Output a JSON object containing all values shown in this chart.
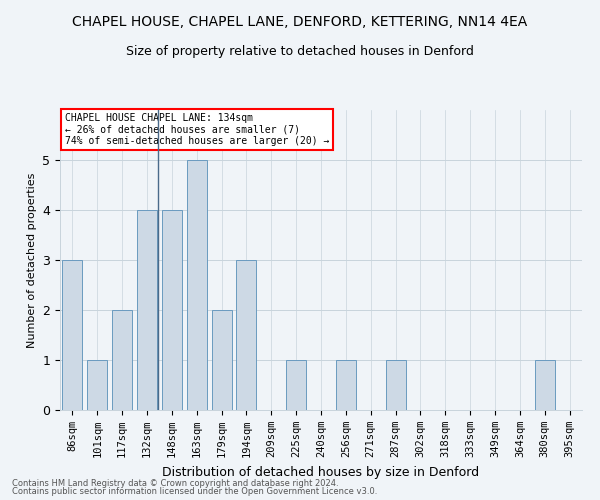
{
  "title": "CHAPEL HOUSE, CHAPEL LANE, DENFORD, KETTERING, NN14 4EA",
  "subtitle": "Size of property relative to detached houses in Denford",
  "xlabel": "Distribution of detached houses by size in Denford",
  "ylabel": "Number of detached properties",
  "categories": [
    "86sqm",
    "101sqm",
    "117sqm",
    "132sqm",
    "148sqm",
    "163sqm",
    "179sqm",
    "194sqm",
    "209sqm",
    "225sqm",
    "240sqm",
    "256sqm",
    "271sqm",
    "287sqm",
    "302sqm",
    "318sqm",
    "333sqm",
    "349sqm",
    "364sqm",
    "380sqm",
    "395sqm"
  ],
  "values": [
    3,
    1,
    2,
    4,
    4,
    5,
    2,
    3,
    0,
    1,
    0,
    1,
    0,
    1,
    0,
    0,
    0,
    0,
    0,
    1,
    0
  ],
  "bar_color": "#cdd9e5",
  "bar_edge_color": "#6a9bbf",
  "annotation_box_text": "CHAPEL HOUSE CHAPEL LANE: 134sqm\n← 26% of detached houses are smaller (7)\n74% of semi-detached houses are larger (20) →",
  "footer_line1": "Contains HM Land Registry data © Crown copyright and database right 2024.",
  "footer_line2": "Contains public sector information licensed under the Open Government Licence v3.0.",
  "ylim": [
    0,
    6
  ],
  "yticks": [
    0,
    1,
    2,
    3,
    4,
    5,
    6
  ],
  "background_color": "#f0f4f8",
  "grid_color": "#c8d4dc",
  "title_fontsize": 10,
  "subtitle_fontsize": 9,
  "ylabel_fontsize": 8,
  "xlabel_fontsize": 9,
  "tick_fontsize": 7.5
}
